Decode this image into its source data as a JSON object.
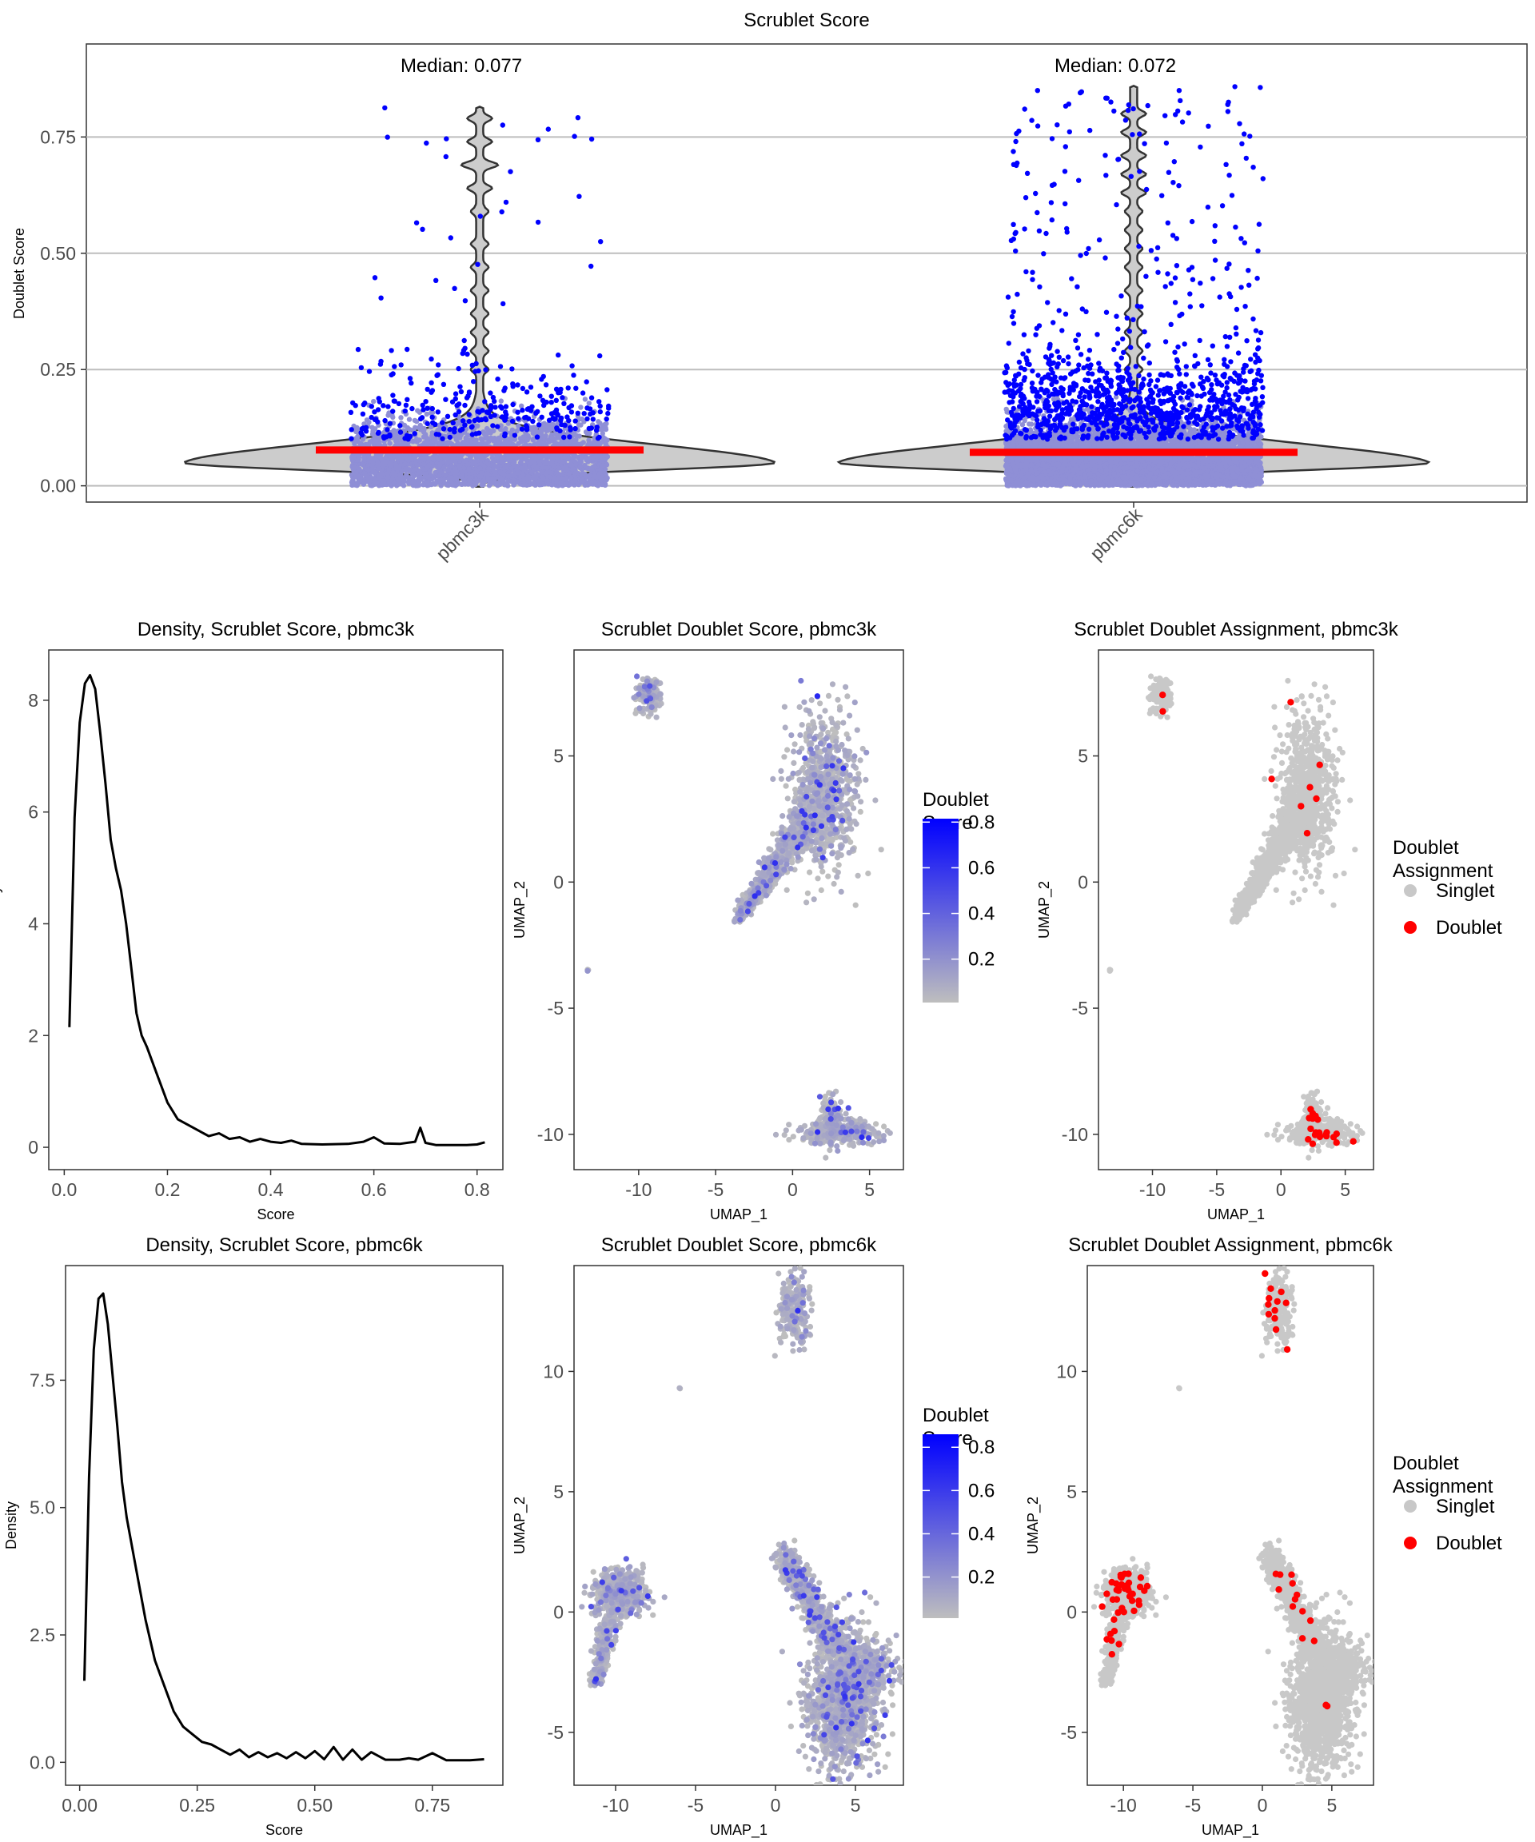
{
  "colors": {
    "singlet": "#c8c8c8",
    "doublet": "#ff0000",
    "score_low": "#bebebe",
    "score_high": "#0000ff",
    "median_bar": "#ff0000",
    "violin_fill": "#cccccc",
    "jitter_low": "#8f8fd6",
    "jitter_high": "#0000ff"
  },
  "chart_data": [
    {
      "type": "violin",
      "title": "Scrublet Score",
      "ylabel": "Doublet Score",
      "xlabel": "",
      "categories": [
        "pbmc3k",
        "pbmc6k"
      ],
      "ylim": [
        -0.035,
        0.95
      ],
      "yticks": [
        "0.00",
        "0.25",
        "0.50",
        "0.75"
      ],
      "ytick_values": [
        0,
        0.25,
        0.5,
        0.75
      ],
      "grid": "horizontal",
      "medians": [
        0.077,
        0.072
      ],
      "median_labels": [
        "Median: 0.077",
        "Median: 0.072"
      ],
      "max_values": [
        0.815,
        0.86
      ]
    },
    {
      "type": "line",
      "title": "Density, Scrublet Score, pbmc3k",
      "xlabel": "Score",
      "ylabel": "Density",
      "xlim": [
        -0.03,
        0.85
      ],
      "ylim": [
        -0.4,
        8.9
      ],
      "xticks": [
        "0.0",
        "0.2",
        "0.4",
        "0.6",
        "0.8"
      ],
      "xtick_values": [
        0,
        0.2,
        0.4,
        0.6,
        0.8
      ],
      "yticks": [
        "0",
        "2",
        "4",
        "6",
        "8"
      ],
      "ytick_values": [
        0,
        2,
        4,
        6,
        8
      ],
      "x": [
        0.01,
        0.02,
        0.03,
        0.04,
        0.05,
        0.06,
        0.07,
        0.08,
        0.09,
        0.1,
        0.11,
        0.12,
        0.13,
        0.14,
        0.15,
        0.16,
        0.18,
        0.2,
        0.22,
        0.24,
        0.26,
        0.28,
        0.3,
        0.32,
        0.34,
        0.36,
        0.38,
        0.4,
        0.42,
        0.44,
        0.46,
        0.5,
        0.55,
        0.58,
        0.6,
        0.62,
        0.65,
        0.68,
        0.69,
        0.7,
        0.72,
        0.75,
        0.78,
        0.8,
        0.815
      ],
      "y": [
        2.15,
        5.9,
        7.6,
        8.3,
        8.45,
        8.2,
        7.4,
        6.5,
        5.5,
        5.0,
        4.6,
        4.0,
        3.2,
        2.4,
        2.0,
        1.8,
        1.3,
        0.8,
        0.5,
        0.4,
        0.3,
        0.2,
        0.25,
        0.15,
        0.18,
        0.1,
        0.15,
        0.1,
        0.08,
        0.12,
        0.06,
        0.05,
        0.06,
        0.1,
        0.18,
        0.07,
        0.06,
        0.1,
        0.35,
        0.08,
        0.04,
        0.04,
        0.04,
        0.05,
        0.09
      ]
    },
    {
      "type": "scatter",
      "title": "Scrublet Doublet Score, pbmc3k",
      "xlabel": "UMAP_1",
      "ylabel": "UMAP_2",
      "xlim": [
        -14.2,
        7.2
      ],
      "ylim": [
        -11.4,
        9.2
      ],
      "xticks": [
        "-10",
        "-5",
        "0",
        "5"
      ],
      "xtick_values": [
        -10,
        -5,
        0,
        5
      ],
      "yticks": [
        "-10",
        "-5",
        "0",
        "5"
      ],
      "ytick_values": [
        -10,
        -5,
        0,
        5
      ],
      "legend": {
        "title": "Doublet Score",
        "title_lines": [
          "Doublet",
          "Score"
        ],
        "labels": [
          "0.8",
          "0.6",
          "0.4",
          "0.2"
        ],
        "values": [
          0.8,
          0.6,
          0.4,
          0.2
        ],
        "range": [
          0.01,
          0.815
        ],
        "placement": "right"
      }
    },
    {
      "type": "scatter",
      "title": "Scrublet Doublet Assignment, pbmc3k",
      "xlabel": "UMAP_1",
      "ylabel": "UMAP_2",
      "xlim": [
        -14.2,
        7.2
      ],
      "ylim": [
        -11.4,
        9.2
      ],
      "xticks": [
        "-10",
        "-5",
        "0",
        "5"
      ],
      "xtick_values": [
        -10,
        -5,
        0,
        5
      ],
      "yticks": [
        "-10",
        "-5",
        "0",
        "5"
      ],
      "ytick_values": [
        -10,
        -5,
        0,
        5
      ],
      "legend": {
        "title": "Doublet Assignment",
        "title_lines": [
          "Doublet",
          "Assignment"
        ],
        "labels": [
          "Singlet",
          "Doublet"
        ],
        "placement": "right"
      }
    },
    {
      "type": "line",
      "title": "Density, Scrublet Score, pbmc6k",
      "xlabel": "Score",
      "ylabel": "Density",
      "xlim": [
        -0.03,
        0.9
      ],
      "ylim": [
        -0.45,
        9.75
      ],
      "xticks": [
        "0.00",
        "0.25",
        "0.50",
        "0.75"
      ],
      "xtick_values": [
        0,
        0.25,
        0.5,
        0.75
      ],
      "yticks": [
        "0.0",
        "2.5",
        "5.0",
        "7.5"
      ],
      "ytick_values": [
        0,
        2.5,
        5,
        7.5
      ],
      "x": [
        0.01,
        0.02,
        0.03,
        0.04,
        0.05,
        0.06,
        0.07,
        0.08,
        0.09,
        0.1,
        0.12,
        0.14,
        0.16,
        0.18,
        0.2,
        0.22,
        0.24,
        0.26,
        0.28,
        0.3,
        0.32,
        0.34,
        0.36,
        0.38,
        0.4,
        0.42,
        0.44,
        0.46,
        0.48,
        0.5,
        0.52,
        0.54,
        0.56,
        0.58,
        0.6,
        0.62,
        0.65,
        0.68,
        0.7,
        0.72,
        0.75,
        0.78,
        0.8,
        0.83,
        0.86
      ],
      "y": [
        1.6,
        5.6,
        8.1,
        9.1,
        9.2,
        8.6,
        7.6,
        6.6,
        5.5,
        4.8,
        3.8,
        2.8,
        2.0,
        1.5,
        1.0,
        0.7,
        0.55,
        0.4,
        0.35,
        0.25,
        0.15,
        0.25,
        0.1,
        0.2,
        0.1,
        0.18,
        0.08,
        0.2,
        0.08,
        0.22,
        0.06,
        0.3,
        0.05,
        0.25,
        0.05,
        0.2,
        0.05,
        0.05,
        0.08,
        0.05,
        0.18,
        0.04,
        0.04,
        0.04,
        0.06
      ]
    },
    {
      "type": "scatter",
      "title": "Scrublet Doublet Score, pbmc6k",
      "xlabel": "UMAP_1",
      "ylabel": "UMAP_2",
      "xlim": [
        -12.6,
        8.0
      ],
      "ylim": [
        -7.2,
        14.4
      ],
      "xticks": [
        "-10",
        "-5",
        "0",
        "5"
      ],
      "xtick_values": [
        -10,
        -5,
        0,
        5
      ],
      "yticks": [
        "-5",
        "0",
        "5",
        "10"
      ],
      "ytick_values": [
        -5,
        0,
        5,
        10
      ],
      "legend": {
        "title": "Doublet Score",
        "title_lines": [
          "Doublet",
          "Score"
        ],
        "labels": [
          "0.8",
          "0.6",
          "0.4",
          "0.2"
        ],
        "values": [
          0.8,
          0.6,
          0.4,
          0.2
        ],
        "range": [
          0.01,
          0.86
        ],
        "placement": "right"
      }
    },
    {
      "type": "scatter",
      "title": "Scrublet Doublet Assignment, pbmc6k",
      "xlabel": "UMAP_1",
      "ylabel": "UMAP_2",
      "xlim": [
        -12.6,
        8.0
      ],
      "ylim": [
        -7.2,
        14.4
      ],
      "xticks": [
        "-10",
        "-5",
        "0",
        "5"
      ],
      "xtick_values": [
        -10,
        -5,
        0,
        5
      ],
      "yticks": [
        "-5",
        "0",
        "5",
        "10"
      ],
      "ytick_values": [
        -5,
        0,
        5,
        10
      ],
      "legend": {
        "title": "Doublet Assignment",
        "title_lines": [
          "Doublet",
          "Assignment"
        ],
        "labels": [
          "Singlet",
          "Doublet"
        ],
        "placement": "right"
      }
    }
  ]
}
